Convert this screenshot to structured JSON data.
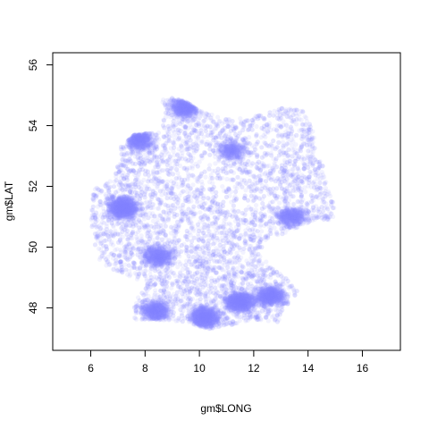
{
  "chart_data": {
    "type": "scatter",
    "title": "",
    "xlabel": "gm$LONG",
    "ylabel": "gm$LAT",
    "xlim": [
      4.6,
      17.4
    ],
    "ylim": [
      46.6,
      56.4
    ],
    "xticks": [
      6,
      8,
      10,
      12,
      14,
      16
    ],
    "yticks": [
      48,
      50,
      52,
      54,
      56
    ],
    "grid": false,
    "legend": "none",
    "point_color": "#8c8cff",
    "point_alpha": 0.05,
    "series": [
      {
        "outline": [
          [
            8.6,
            55.0
          ],
          [
            9.5,
            54.8
          ],
          [
            10.0,
            54.5
          ],
          [
            11.0,
            54.2
          ],
          [
            12.0,
            54.3
          ],
          [
            13.0,
            54.6
          ],
          [
            13.8,
            54.5
          ],
          [
            14.2,
            53.8
          ],
          [
            14.3,
            53.2
          ],
          [
            14.6,
            52.6
          ],
          [
            14.7,
            52.0
          ],
          [
            15.0,
            51.3
          ],
          [
            14.9,
            50.9
          ],
          [
            14.3,
            50.9
          ],
          [
            13.5,
            50.6
          ],
          [
            12.4,
            50.2
          ],
          [
            12.2,
            49.8
          ],
          [
            12.6,
            49.4
          ],
          [
            13.4,
            48.9
          ],
          [
            13.7,
            48.6
          ],
          [
            13.0,
            47.8
          ],
          [
            12.9,
            47.5
          ],
          [
            12.0,
            47.6
          ],
          [
            11.0,
            47.4
          ],
          [
            10.3,
            47.3
          ],
          [
            9.6,
            47.5
          ],
          [
            8.6,
            47.6
          ],
          [
            7.6,
            47.6
          ],
          [
            7.6,
            48.1
          ],
          [
            8.0,
            48.8
          ],
          [
            7.3,
            49.1
          ],
          [
            6.4,
            49.4
          ],
          [
            6.1,
            50.2
          ],
          [
            6.0,
            50.8
          ],
          [
            6.0,
            51.4
          ],
          [
            6.0,
            51.9
          ],
          [
            6.8,
            52.2
          ],
          [
            7.0,
            52.7
          ],
          [
            7.1,
            53.3
          ],
          [
            7.6,
            53.7
          ],
          [
            8.6,
            53.8
          ],
          [
            8.7,
            54.4
          ],
          [
            8.6,
            55.0
          ]
        ],
        "dense_areas": [
          {
            "lon": 7.2,
            "lat": 51.3,
            "weight": 0.9
          },
          {
            "lon": 7.8,
            "lat": 53.55,
            "weight": 0.6
          },
          {
            "lon": 8.5,
            "lat": 49.7,
            "weight": 0.5
          },
          {
            "lon": 11.5,
            "lat": 48.2,
            "weight": 0.8
          },
          {
            "lon": 12.6,
            "lat": 48.4,
            "weight": 0.7
          },
          {
            "lon": 10.2,
            "lat": 47.7,
            "weight": 0.8
          },
          {
            "lon": 8.4,
            "lat": 47.9,
            "weight": 0.6
          },
          {
            "lon": 9.5,
            "lat": 54.6,
            "weight": 0.6
          },
          {
            "lon": 11.2,
            "lat": 53.2,
            "weight": 0.3
          },
          {
            "lon": 13.4,
            "lat": 51.0,
            "weight": 0.4
          }
        ],
        "sparse_areas": [
          {
            "lon": 10.0,
            "lat": 52.6,
            "weight": 0.6
          },
          {
            "lon": 12.5,
            "lat": 53.5,
            "weight": 0.5
          },
          {
            "lon": 11.5,
            "lat": 51.6,
            "weight": 0.4
          },
          {
            "lon": 9.3,
            "lat": 50.8,
            "weight": 0.4
          }
        ]
      }
    ]
  }
}
